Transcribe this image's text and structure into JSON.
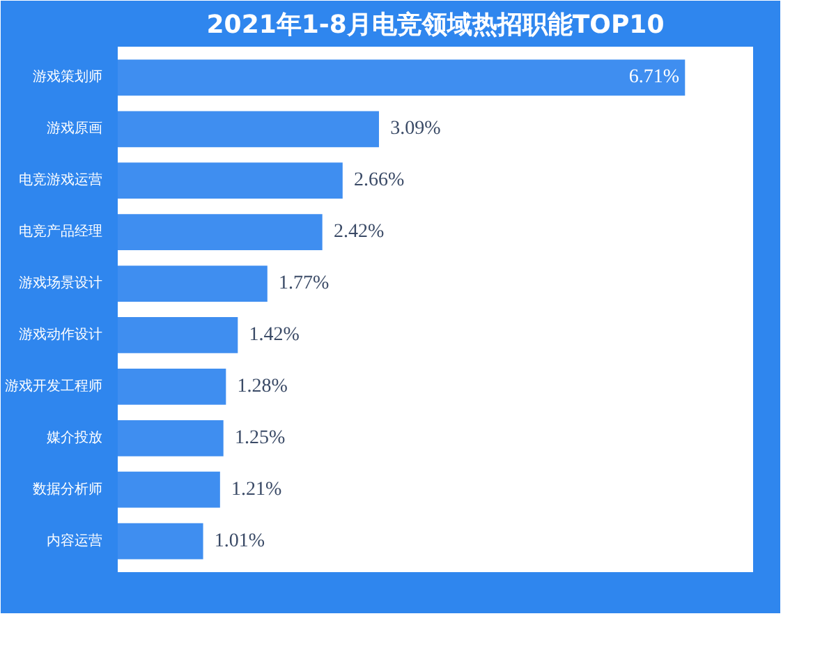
{
  "chart_data": {
    "type": "bar",
    "orientation": "horizontal",
    "title": "2021年1-8月电竞领域热招职能TOP10",
    "categories": [
      "游戏策划师",
      "游戏原画",
      "电竞游戏运营",
      "电竞产品经理",
      "游戏场景设计",
      "游戏动作设计",
      "游戏开发工程师",
      "媒介投放",
      "数据分析师",
      "内容运营"
    ],
    "values": [
      6.71,
      3.09,
      2.66,
      2.42,
      1.77,
      1.42,
      1.28,
      1.25,
      1.21,
      1.01
    ],
    "value_labels": [
      "6.71%",
      "3.09%",
      "2.66%",
      "2.42%",
      "1.77%",
      "1.42%",
      "1.28%",
      "1.25%",
      "1.21%",
      "1.01%"
    ],
    "color": "#3f8ef0",
    "grid": false
  }
}
